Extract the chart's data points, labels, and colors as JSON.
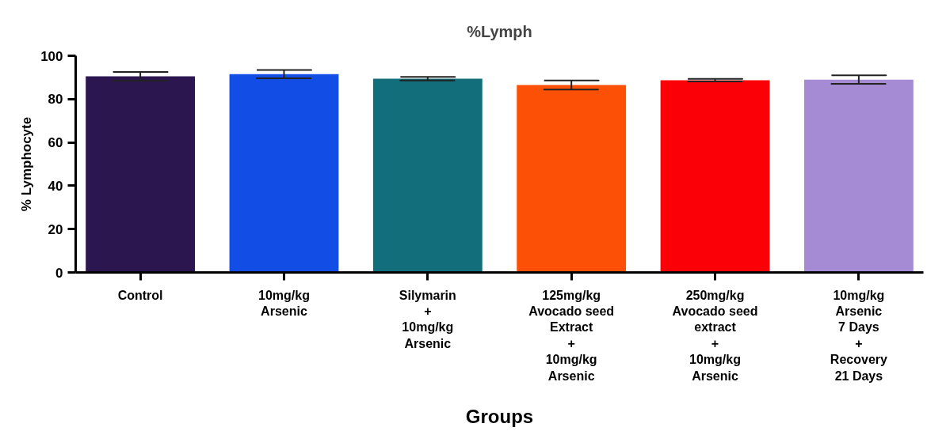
{
  "chart_data": {
    "type": "bar",
    "title": "%Lymph",
    "xlabel": "Groups",
    "ylabel": "% Lymphocyte",
    "categories": [
      "Control",
      "10mg/kg\nArsenic",
      "Silymarin\n+\n10mg/kg\nArsenic",
      "125mg/kg\nAvocado seed\nExtract\n+\n10mg/kg\nArsenic",
      "250mg/kg\nAvocado seed\nextract\n+\n10mg/kg\nArsenic",
      "10mg/kg\nArsenic\n7 Days\n+\nRecovery\n21 Days"
    ],
    "values": [
      90.5,
      91.5,
      89.4,
      86.5,
      88.7,
      89.0
    ],
    "errors": [
      2.0,
      1.9,
      0.8,
      2.1,
      0.6,
      2.0
    ],
    "colors": [
      "#2c1650",
      "#124ee6",
      "#116e7a",
      "#fb5006",
      "#fb0006",
      "#a48bd3"
    ],
    "ylim": [
      0,
      100
    ],
    "yticks": [
      0,
      20,
      40,
      60,
      80,
      100
    ]
  }
}
